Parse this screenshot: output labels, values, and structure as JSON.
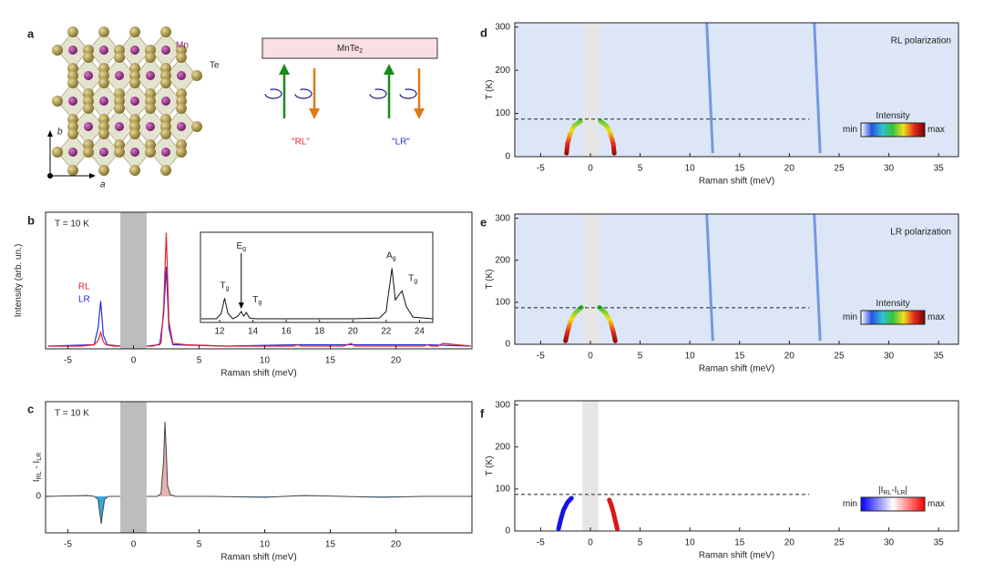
{
  "panel_labels": [
    "a",
    "b",
    "c",
    "d",
    "e",
    "f"
  ],
  "diagram": {
    "mn": "Mn",
    "te": "Te",
    "axis_b": "b",
    "axis_a": "a",
    "sample": {
      "text": "MnTe",
      "sub": "2"
    },
    "rl": "\"RL\"",
    "lr": "\"LR\""
  },
  "chart_data": [
    {
      "type": "line",
      "annotation": "T = 10 K",
      "x_label": "Raman shift (meV)",
      "y_label": "Intensity (arb. un.)",
      "xlim": [
        -6.7,
        25.8
      ],
      "xticks": [
        -5,
        0,
        5,
        10,
        15,
        20
      ],
      "ylim": [
        0,
        1
      ],
      "excluded_band": [
        -1,
        1
      ],
      "band_color": "#bdbdbd",
      "series": [
        {
          "name": "RL",
          "color": "#e8202a",
          "x": [
            -6.5,
            -4,
            -3,
            -2.7,
            -2.5,
            -2.3,
            -2.1,
            -1.5,
            -1,
            0,
            1,
            1.5,
            2.1,
            2.3,
            2.5,
            2.7,
            3,
            4,
            7,
            12.2,
            12.5,
            12.8,
            16,
            16.6,
            16.9,
            22.1,
            22.4,
            22.7,
            23.2,
            23.6,
            25.7
          ],
          "values": [
            0.02,
            0.02,
            0.03,
            0.06,
            0.12,
            0.05,
            0.03,
            0.02,
            0.02,
            null,
            0.02,
            0.02,
            0.04,
            0.3,
            0.85,
            0.2,
            0.04,
            0.03,
            0.02,
            0.02,
            0.03,
            0.02,
            0.02,
            0.04,
            0.02,
            0.02,
            0.03,
            0.02,
            0.02,
            0.04,
            0.02
          ]
        },
        {
          "name": "LR",
          "color": "#2a2ae0",
          "x": [
            -6.5,
            -3,
            -2.7,
            -2.5,
            -2.3,
            -2,
            -1,
            0,
            1,
            2,
            2.3,
            2.5,
            2.7,
            3,
            7,
            12.5,
            22.4,
            25.7
          ],
          "values": [
            0.02,
            0.03,
            0.15,
            0.35,
            0.1,
            0.03,
            0.02,
            null,
            0.02,
            0.03,
            0.25,
            0.6,
            0.15,
            0.03,
            0.02,
            0.03,
            0.03,
            0.02
          ]
        }
      ],
      "inset": {
        "xlim": [
          10.85,
          24.8
        ],
        "xticks": [
          12,
          14,
          16,
          18,
          20,
          22,
          24
        ],
        "ylim": [
          0,
          1
        ],
        "series": [
          {
            "color": "#111111",
            "x": [
              10.9,
              11.8,
              12.1,
              12.3,
              12.5,
              12.8,
              13.1,
              13.3,
              13.45,
              13.6,
              13.8,
              14.2,
              16,
              18,
              20,
              21.6,
              22,
              22.2,
              22.35,
              22.55,
              22.75,
              22.95,
              23.2,
              23.6,
              24.8
            ],
            "values": [
              0.04,
              0.04,
              0.1,
              0.27,
              0.1,
              0.04,
              0.07,
              0.12,
              0.07,
              0.11,
              0.05,
              0.04,
              0.04,
              0.04,
              0.04,
              0.05,
              0.12,
              0.4,
              0.6,
              0.25,
              0.3,
              0.35,
              0.18,
              0.06,
              0.04
            ]
          }
        ],
        "peak_labels": [
          {
            "text": "T",
            "sub": "g",
            "x": 12.3
          },
          {
            "text": "E",
            "sub": "g",
            "x": 13.3,
            "arrow": true
          },
          {
            "text": "T",
            "sub": "g",
            "x": 13.6
          },
          {
            "text": "A",
            "sub": "g",
            "x": 22.3
          },
          {
            "text": "T",
            "sub": "g",
            "x": 22.95
          }
        ]
      }
    },
    {
      "type": "area",
      "annotation": "T = 10 K",
      "x_label": "Raman shift (meV)",
      "y_label": [
        {
          "text": "I",
          "sub": "RL"
        },
        {
          "text": " - I",
          "sub": "LR"
        }
      ],
      "xlim": [
        -6.7,
        25.8
      ],
      "xticks": [
        -5,
        0,
        5,
        10,
        15,
        20
      ],
      "ylim": [
        -0.4,
        1.04
      ],
      "yticks": [
        0
      ],
      "excluded_band": [
        -1,
        1
      ],
      "band_color": "#bdbdbd",
      "series": [
        {
          "color": "#444444",
          "fill_positive": "#e6b3ad",
          "fill_negative": "#3aa7dc",
          "x": [
            -6.6,
            -3.5,
            -3,
            -2.7,
            -2.55,
            -2.45,
            -2.35,
            -2.2,
            -1.9,
            -1,
            0,
            1,
            1.8,
            2.1,
            2.3,
            2.4,
            2.5,
            2.6,
            2.8,
            3.2,
            6,
            10,
            13,
            16,
            19,
            22,
            25.8
          ],
          "values": [
            0,
            0.01,
            0,
            -0.03,
            -0.2,
            -0.3,
            -0.18,
            -0.03,
            0,
            0,
            null,
            0,
            0,
            0.03,
            0.4,
            0.82,
            0.5,
            0.12,
            0.02,
            0,
            0,
            -0.01,
            0.01,
            0,
            -0.01,
            0,
            0
          ]
        }
      ]
    },
    {
      "type": "heatmap",
      "annotation": "RL polarization",
      "x_label": "Raman shift (meV)",
      "y_label": "T (K)",
      "xlim": [
        -7.6,
        37
      ],
      "xticks": [
        -5,
        0,
        5,
        10,
        15,
        20,
        25,
        30,
        35
      ],
      "ylim": [
        0,
        310
      ],
      "yticks": [
        0,
        100,
        200,
        300
      ],
      "background": "#dce6f7",
      "excluded_band": [
        -0.8,
        0.8
      ],
      "band_color": "#e6e6e6",
      "transition_T": 87,
      "transition_xmax": 22,
      "phonon_color": "#5b84dd",
      "phonons": [
        {
          "x": [
            12.3,
            11.7
          ],
          "y": [
            8,
            310
          ]
        },
        {
          "x": [
            23.1,
            22.5
          ],
          "y": [
            8,
            310
          ]
        }
      ],
      "branch_colors": [
        "#7a0000",
        "#e52a1e",
        "#f2e11c",
        "#2fbf3a"
      ],
      "branches": [
        {
          "x": [
            -2.4,
            -2.3,
            -2.0,
            -1.6,
            -1.0
          ],
          "y": [
            8,
            30,
            55,
            72,
            82
          ]
        },
        {
          "x": [
            2.4,
            2.3,
            2.0,
            1.6,
            1.0
          ],
          "y": [
            8,
            30,
            55,
            72,
            82
          ]
        }
      ],
      "colorbar": {
        "title": "Intensity",
        "min": "min",
        "max": "max",
        "colors": [
          "#ffffff",
          "#2850e0",
          "#2dc3d6",
          "#37c23a",
          "#f2e11c",
          "#e52a1e",
          "#7a0000"
        ]
      }
    },
    {
      "type": "heatmap",
      "annotation": "LR polarization",
      "x_label": "Raman shift (meV)",
      "y_label": "T (K)",
      "xlim": [
        -7.6,
        37
      ],
      "xticks": [
        -5,
        0,
        5,
        10,
        15,
        20,
        25,
        30,
        35
      ],
      "ylim": [
        0,
        310
      ],
      "yticks": [
        0,
        100,
        200,
        300
      ],
      "background": "#dce6f7",
      "excluded_band": [
        -0.8,
        0.8
      ],
      "band_color": "#e6e6e6",
      "transition_T": 87,
      "transition_xmax": 22,
      "phonon_color": "#5b84dd",
      "phonons": [
        {
          "x": [
            12.3,
            11.7
          ],
          "y": [
            8,
            310
          ]
        },
        {
          "x": [
            23.1,
            22.5
          ],
          "y": [
            8,
            310
          ]
        }
      ],
      "branch_colors": [
        "#7a0000",
        "#e52a1e",
        "#f2e11c",
        "#2fbf3a"
      ],
      "branches": [
        {
          "x": [
            -2.5,
            -2.3,
            -2.0,
            -1.5,
            -0.9
          ],
          "y": [
            8,
            30,
            55,
            75,
            88
          ]
        },
        {
          "x": [
            2.5,
            2.3,
            2.0,
            1.5,
            0.9
          ],
          "y": [
            8,
            30,
            55,
            75,
            88
          ]
        }
      ],
      "colorbar": {
        "title": "Intensity",
        "min": "min",
        "max": "max",
        "colors": [
          "#ffffff",
          "#2850e0",
          "#2dc3d6",
          "#37c23a",
          "#f2e11c",
          "#e52a1e",
          "#7a0000"
        ]
      }
    },
    {
      "type": "heatmap",
      "x_label": "Raman shift (meV)",
      "y_label": "T (K)",
      "xlim": [
        -7.6,
        37
      ],
      "xticks": [
        -5,
        0,
        5,
        10,
        15,
        20,
        25,
        30,
        35
      ],
      "ylim": [
        0,
        310
      ],
      "yticks": [
        0,
        100,
        200,
        300
      ],
      "background": "#ffffff",
      "excluded_band": [
        -0.8,
        0.8
      ],
      "band_color": "#e6e6e6",
      "transition_T": 87,
      "transition_xmax": 22,
      "branches": [
        {
          "color": "#1414e0",
          "x": [
            -3.2,
            -3.0,
            -2.7,
            -2.3,
            -1.9
          ],
          "y": [
            5,
            25,
            50,
            68,
            78
          ]
        },
        {
          "color": "#e01414",
          "x": [
            2.7,
            2.5,
            2.3,
            2.1,
            1.9
          ],
          "y": [
            5,
            25,
            45,
            62,
            74
          ]
        }
      ],
      "colorbar": {
        "title": [
          {
            "text": "|I",
            "sub": "RL"
          },
          {
            "text": "-I",
            "sub": "LR"
          },
          {
            "text": "|"
          }
        ],
        "min": "min",
        "max": "max",
        "colors": [
          "#0000ff",
          "#ffffff",
          "#ff0000"
        ]
      }
    }
  ]
}
